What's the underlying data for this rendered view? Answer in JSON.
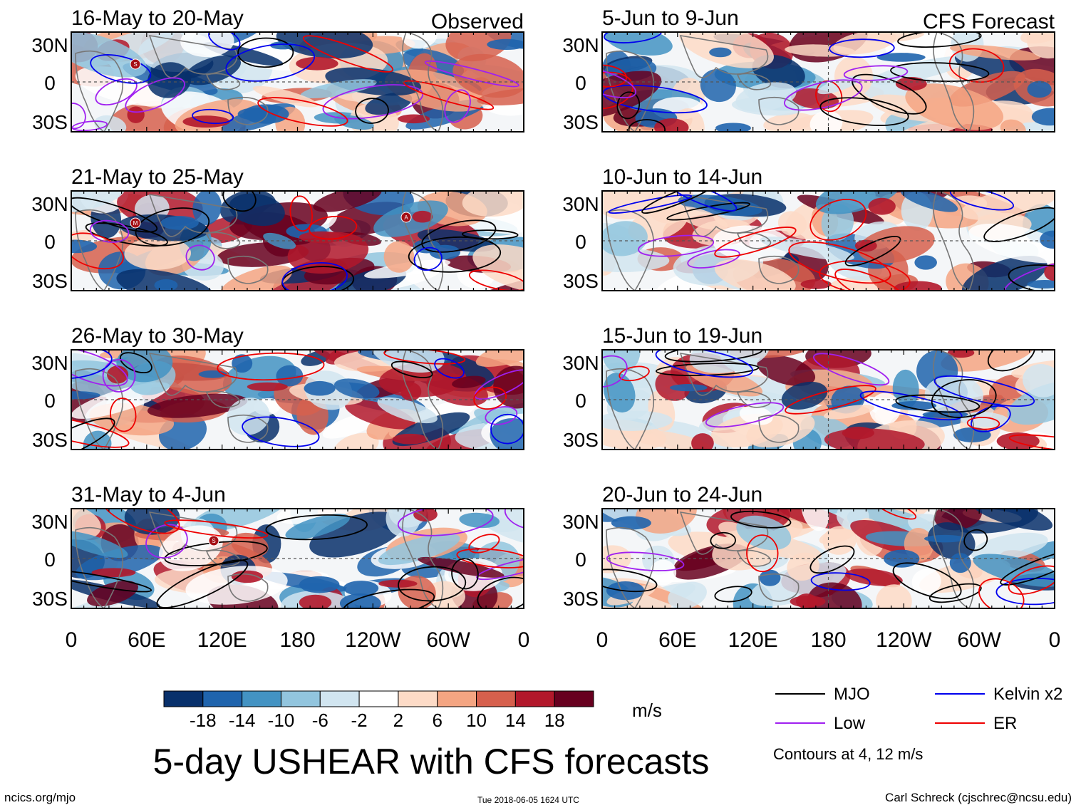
{
  "chart_data": {
    "type": "heatmap",
    "title": "5-day USHEAR with CFS forecasts",
    "variable": "USHEAR",
    "units": "m/s",
    "x_ticks": [
      "0",
      "60E",
      "120E",
      "180",
      "120W",
      "60W",
      "0"
    ],
    "y_ticks": [
      "30N",
      "0",
      "30S"
    ],
    "lat_range": [
      -40,
      40
    ],
    "lon_range": [
      0,
      360
    ],
    "columns": [
      {
        "label": "Observed",
        "panels": [
          {
            "period": "16-May to 20-May",
            "storm_markers": [
              "S"
            ]
          },
          {
            "period": "21-May to 25-May",
            "storm_markers": [
              "M",
              "A"
            ]
          },
          {
            "period": "26-May to 30-May",
            "storm_markers": []
          },
          {
            "period": "31-May to 4-Jun",
            "storm_markers": [
              "S"
            ]
          }
        ]
      },
      {
        "label": "CFS Forecast",
        "panels": [
          {
            "period": "5-Jun to 9-Jun",
            "storm_markers": []
          },
          {
            "period": "10-Jun to 14-Jun",
            "storm_markers": []
          },
          {
            "period": "15-Jun to 19-Jun",
            "storm_markers": []
          },
          {
            "period": "20-Jun to 24-Jun",
            "storm_markers": []
          }
        ]
      }
    ],
    "colorbar": {
      "labels": [
        "-18",
        "-14",
        "-10",
        "-6",
        "-2",
        "2",
        "6",
        "10",
        "14",
        "18"
      ],
      "colors": [
        "#08306b",
        "#1f64ad",
        "#4393c3",
        "#92c5de",
        "#d1e5f0",
        "#ffffff",
        "#fddbc7",
        "#f4a582",
        "#d6604d",
        "#b2182b",
        "#67001f"
      ]
    },
    "contours": [
      {
        "name": "MJO",
        "color": "#000000"
      },
      {
        "name": "Kelvin x2",
        "color": "#0000ee"
      },
      {
        "name": "Low",
        "color": "#a020f0"
      },
      {
        "name": "ER",
        "color": "#ee0000"
      }
    ],
    "contour_levels_note": "Contours at 4, 12 m/s"
  },
  "footer": {
    "left": "ncics.org/mjo",
    "timestamp": "Tue 2018-06-05 1624 UTC",
    "right": "Carl Schreck (cjschrec@ncsu.edu)"
  }
}
